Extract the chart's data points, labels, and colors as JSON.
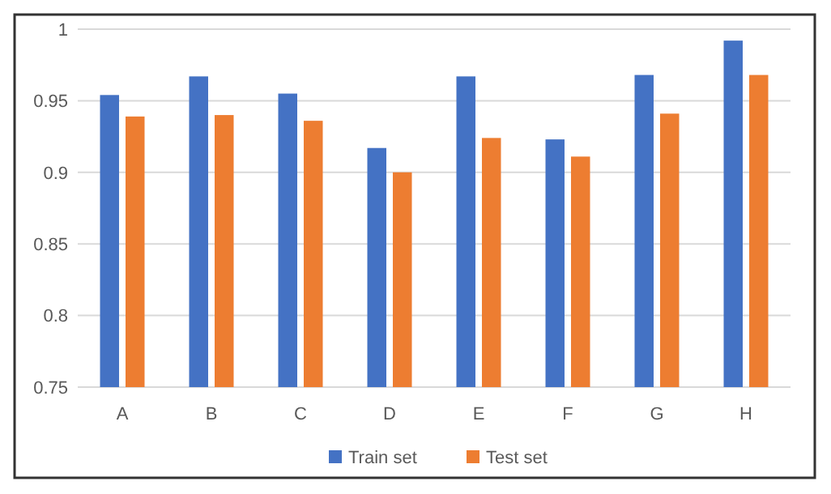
{
  "chart_data": {
    "type": "bar",
    "categories": [
      "A",
      "B",
      "C",
      "D",
      "E",
      "F",
      "G",
      "H"
    ],
    "series": [
      {
        "name": "Train set",
        "color": "#4472c4",
        "values": [
          0.954,
          0.967,
          0.955,
          0.917,
          0.967,
          0.923,
          0.968,
          0.992
        ]
      },
      {
        "name": "Test set",
        "color": "#ed7d31",
        "values": [
          0.939,
          0.94,
          0.936,
          0.9,
          0.924,
          0.911,
          0.941,
          0.968
        ]
      }
    ],
    "ylim": [
      0.75,
      1
    ],
    "yticks": [
      0.75,
      0.8,
      0.85,
      0.9,
      0.95,
      1
    ],
    "grid": "y",
    "legend": "bottom"
  }
}
